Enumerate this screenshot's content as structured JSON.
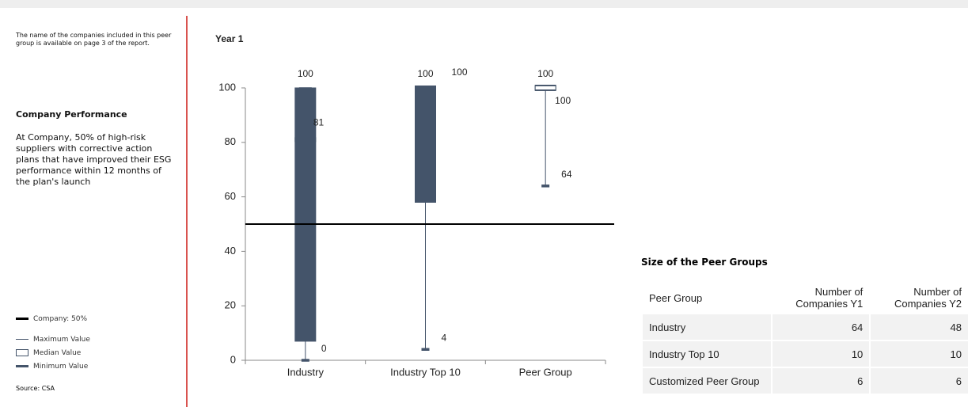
{
  "left": {
    "note": "The name of the companies included in this peer group is available on page 3 of the report.",
    "heading": "Company Performance",
    "text": "At Company, 50% of high-risk suppliers with corrective action plans that have improved their ESG performance within 12 months of the plan's launch",
    "legend": [
      "Company: 50%",
      "Maximum Value",
      "Median Value",
      "Minimum Value"
    ],
    "source": "Source: CSA"
  },
  "chart_data": {
    "type": "box",
    "title": "Year 1",
    "categories": [
      "Industry",
      "Industry Top 10",
      "Peer Group"
    ],
    "min": [
      0,
      4,
      64
    ],
    "q1": [
      7,
      58,
      99
    ],
    "median": [
      81,
      100,
      100
    ],
    "q3": [
      100,
      100,
      101
    ],
    "max": [
      100,
      100,
      100
    ],
    "box_colors": [
      "#44546a",
      "#44546a",
      "#ffffff"
    ],
    "whisker_color": "#44546a",
    "reference_line": {
      "value": 50,
      "color": "#000000"
    },
    "ylim": [
      0,
      100
    ],
    "yticks": [
      0,
      20,
      40,
      60,
      80,
      100
    ]
  },
  "table": {
    "title": "Size of the Peer Groups",
    "header": [
      "Peer Group",
      "Number of Companies Y1",
      "Number of Companies Y2"
    ],
    "rows": [
      [
        "Industry",
        64,
        48
      ],
      [
        "Industry Top 10",
        10,
        10
      ],
      [
        "Customized Peer Group",
        6,
        6
      ]
    ]
  }
}
